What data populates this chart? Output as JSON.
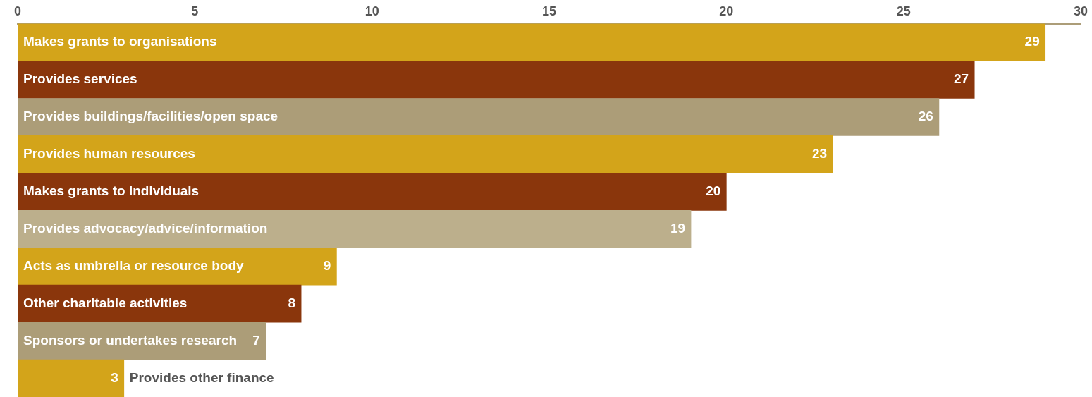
{
  "chart_data": {
    "type": "bar",
    "orientation": "horizontal",
    "categories": [
      "Makes grants to organisations",
      "Provides services",
      "Provides buildings/facilities/open space",
      "Provides human resources",
      "Makes grants to individuals",
      "Provides advocacy/advice/information",
      "Acts as umbrella or resource body",
      "Other charitable activities",
      "Sponsors or undertakes research",
      "Provides other finance"
    ],
    "values": [
      29,
      27,
      26,
      23,
      20,
      19,
      9,
      8,
      7,
      3
    ],
    "colors": [
      "#d3a41a",
      "#8a360c",
      "#ac9d78",
      "#d3a41a",
      "#8a360c",
      "#bcaf8c",
      "#d3a41a",
      "#8a360c",
      "#ac9d78",
      "#d3a41a"
    ],
    "xlim": [
      0,
      30
    ],
    "xticks": [
      0,
      5,
      10,
      15,
      20,
      25,
      30
    ],
    "data_labels": true,
    "grid": false,
    "legend": false
  }
}
